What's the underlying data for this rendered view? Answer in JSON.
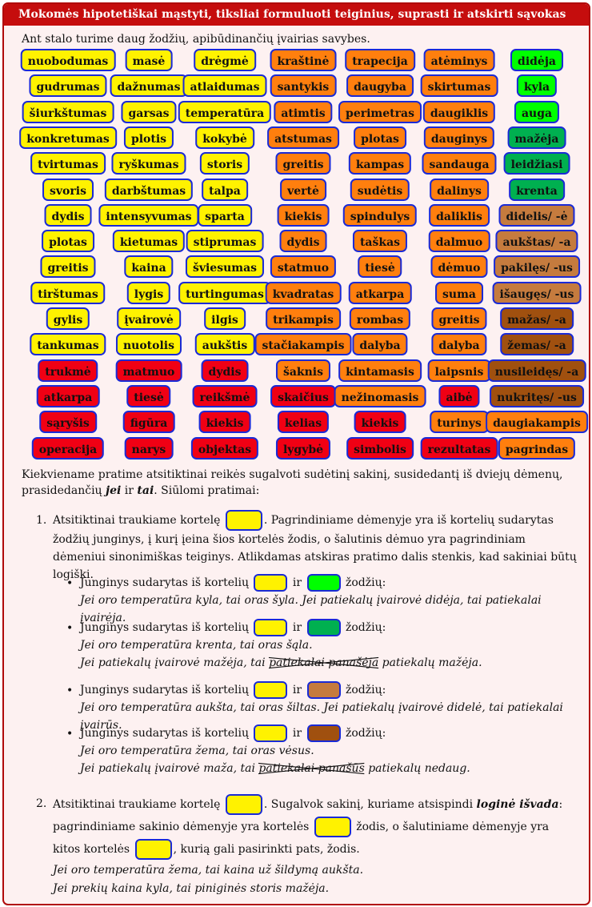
{
  "title": "Mokomės hipotetiškai mąstyti, tiksliai formuluoti teiginius, suprasti ir atskirti sąvokas",
  "intro": "Ant stalo turime daug žodžių, apibūdinančių įvairias savybes.",
  "colors": {
    "yellow": "#fff200",
    "orange": "#ff7f0e",
    "red": "#f00014",
    "green": "#00ff00",
    "darkgreen": "#00b050",
    "tan": "#c57b3e",
    "brown": "#a0500f"
  },
  "columns": [
    {
      "items": [
        {
          "label": "nuobodumas",
          "color": "#fff200"
        },
        {
          "label": "gudrumas",
          "color": "#fff200"
        },
        {
          "label": "šiurkštumas",
          "color": "#fff200"
        },
        {
          "label": "konkretumas",
          "color": "#fff200"
        },
        {
          "label": "tvirtumas",
          "color": "#fff200"
        },
        {
          "label": "svoris",
          "color": "#fff200"
        },
        {
          "label": "dydis",
          "color": "#fff200"
        },
        {
          "label": "plotas",
          "color": "#fff200"
        },
        {
          "label": "greitis",
          "color": "#fff200"
        },
        {
          "label": "tirštumas",
          "color": "#fff200"
        },
        {
          "label": "gylis",
          "color": "#fff200"
        },
        {
          "label": "tankumas",
          "color": "#fff200"
        },
        {
          "label": "trukmė",
          "color": "#f00014"
        },
        {
          "label": "atkarpa",
          "color": "#f00014"
        },
        {
          "label": "sąryšis",
          "color": "#f00014"
        },
        {
          "label": "operacija",
          "color": "#f00014"
        }
      ]
    },
    {
      "items": [
        {
          "label": "masė",
          "color": "#fff200"
        },
        {
          "label": "dažnumas",
          "color": "#fff200"
        },
        {
          "label": "garsas",
          "color": "#fff200"
        },
        {
          "label": "plotis",
          "color": "#fff200"
        },
        {
          "label": "ryškumas",
          "color": "#fff200"
        },
        {
          "label": "darbštumas",
          "color": "#fff200"
        },
        {
          "label": "intensyvumas",
          "color": "#fff200"
        },
        {
          "label": "kietumas",
          "color": "#fff200"
        },
        {
          "label": "kaina",
          "color": "#fff200"
        },
        {
          "label": "lygis",
          "color": "#fff200"
        },
        {
          "label": "įvairovė",
          "color": "#fff200"
        },
        {
          "label": "nuotolis",
          "color": "#fff200"
        },
        {
          "label": "matmuo",
          "color": "#f00014"
        },
        {
          "label": "tiesė",
          "color": "#f00014"
        },
        {
          "label": "figūra",
          "color": "#f00014"
        },
        {
          "label": "narys",
          "color": "#f00014"
        }
      ]
    },
    {
      "items": [
        {
          "label": "drėgmė",
          "color": "#fff200"
        },
        {
          "label": "atlaidumas",
          "color": "#fff200"
        },
        {
          "label": "temperatūra",
          "color": "#fff200"
        },
        {
          "label": "kokybė",
          "color": "#fff200"
        },
        {
          "label": "storis",
          "color": "#fff200"
        },
        {
          "label": "talpa",
          "color": "#fff200"
        },
        {
          "label": "sparta",
          "color": "#fff200"
        },
        {
          "label": "stiprumas",
          "color": "#fff200"
        },
        {
          "label": "šviesumas",
          "color": "#fff200"
        },
        {
          "label": "turtingumas",
          "color": "#fff200"
        },
        {
          "label": "ilgis",
          "color": "#fff200"
        },
        {
          "label": "aukštis",
          "color": "#fff200"
        },
        {
          "label": "dydis",
          "color": "#f00014"
        },
        {
          "label": "reikšmė",
          "color": "#f00014"
        },
        {
          "label": "kiekis",
          "color": "#f00014"
        },
        {
          "label": "objektas",
          "color": "#f00014"
        }
      ]
    },
    {
      "items": [
        {
          "label": "kraštinė",
          "color": "#ff7f0e"
        },
        {
          "label": "santykis",
          "color": "#ff7f0e"
        },
        {
          "label": "atimtis",
          "color": "#ff7f0e"
        },
        {
          "label": "atstumas",
          "color": "#ff7f0e"
        },
        {
          "label": "greitis",
          "color": "#ff7f0e"
        },
        {
          "label": "vertė",
          "color": "#ff7f0e"
        },
        {
          "label": "kiekis",
          "color": "#ff7f0e"
        },
        {
          "label": "dydis",
          "color": "#ff7f0e"
        },
        {
          "label": "statmuo",
          "color": "#ff7f0e"
        },
        {
          "label": "kvadratas",
          "color": "#ff7f0e"
        },
        {
          "label": "trikampis",
          "color": "#ff7f0e"
        },
        {
          "label": "stačiakampis",
          "color": "#ff7f0e"
        },
        {
          "label": "šaknis",
          "color": "#ff7f0e"
        },
        {
          "label": "skaičius",
          "color": "#f00014"
        },
        {
          "label": "kelias",
          "color": "#f00014"
        },
        {
          "label": "lygybė",
          "color": "#f00014"
        }
      ]
    },
    {
      "items": [
        {
          "label": "trapecija",
          "color": "#ff7f0e"
        },
        {
          "label": "daugyba",
          "color": "#ff7f0e"
        },
        {
          "label": "perimetras",
          "color": "#ff7f0e"
        },
        {
          "label": "plotas",
          "color": "#ff7f0e"
        },
        {
          "label": "kampas",
          "color": "#ff7f0e"
        },
        {
          "label": "sudėtis",
          "color": "#ff7f0e"
        },
        {
          "label": "spindulys",
          "color": "#ff7f0e"
        },
        {
          "label": "taškas",
          "color": "#ff7f0e"
        },
        {
          "label": "tiesė",
          "color": "#ff7f0e"
        },
        {
          "label": "atkarpa",
          "color": "#ff7f0e"
        },
        {
          "label": "rombas",
          "color": "#ff7f0e"
        },
        {
          "label": "dalyba",
          "color": "#ff7f0e"
        },
        {
          "label": "kintamasis",
          "color": "#ff7f0e"
        },
        {
          "label": "nežinomasis",
          "color": "#ff7f0e"
        },
        {
          "label": "kiekis",
          "color": "#f00014"
        },
        {
          "label": "simbolis",
          "color": "#f00014"
        }
      ]
    },
    {
      "items": [
        {
          "label": "atėminys",
          "color": "#ff7f0e"
        },
        {
          "label": "skirtumas",
          "color": "#ff7f0e"
        },
        {
          "label": "daugiklis",
          "color": "#ff7f0e"
        },
        {
          "label": "dauginys",
          "color": "#ff7f0e"
        },
        {
          "label": "sandauga",
          "color": "#ff7f0e"
        },
        {
          "label": "dalinys",
          "color": "#ff7f0e"
        },
        {
          "label": "daliklis",
          "color": "#ff7f0e"
        },
        {
          "label": "dalmuo",
          "color": "#ff7f0e"
        },
        {
          "label": "dėmuo",
          "color": "#ff7f0e"
        },
        {
          "label": "suma",
          "color": "#ff7f0e"
        },
        {
          "label": "greitis",
          "color": "#ff7f0e"
        },
        {
          "label": "dalyba",
          "color": "#ff7f0e"
        },
        {
          "label": "laipsnis",
          "color": "#ff7f0e"
        },
        {
          "label": "aibė",
          "color": "#f00014"
        },
        {
          "label": "turinys",
          "color": "#ff7f0e"
        },
        {
          "label": "rezultatas",
          "color": "#f00014"
        }
      ]
    },
    {
      "items": [
        {
          "label": "didėja",
          "color": "#00ff00"
        },
        {
          "label": "kyla",
          "color": "#00ff00"
        },
        {
          "label": "auga",
          "color": "#00ff00"
        },
        {
          "label": "mažėja",
          "color": "#00b050"
        },
        {
          "label": "leidžiasi",
          "color": "#00b050"
        },
        {
          "label": "krenta",
          "color": "#00b050"
        },
        {
          "label": "didelis/ -ė",
          "color": "#c57b3e"
        },
        {
          "label": "aukštas/ -a",
          "color": "#c57b3e"
        },
        {
          "label": "pakilęs/ -us",
          "color": "#c57b3e"
        },
        {
          "label": "išaugęs/ -us",
          "color": "#c57b3e"
        },
        {
          "label": "mažas/ -a",
          "color": "#a0500f"
        },
        {
          "label": "žemas/ -a",
          "color": "#a0500f"
        },
        {
          "label": "nusileidęs/ -a",
          "color": "#a0500f"
        },
        {
          "label": "nukritęs/ -us",
          "color": "#a0500f"
        },
        {
          "label": "daugiakampis",
          "color": "#ff7f0e"
        },
        {
          "label": "pagrindas",
          "color": "#ff7f0e"
        }
      ]
    }
  ],
  "task_intro_1": "Kiekviename pratime atsitiktinai reikės sugalvoti sudėtinį sakinį, susidedantį iš dviejų dėmenų, prasidedančių",
  "kw_jei": "jei",
  "kw_ir": "ir",
  "kw_tai": "tai",
  "task_intro_2": "Siūlomi pratimai:",
  "ex1": {
    "num": "1.",
    "a": "Atsitiktinai traukiame kortelę",
    "b": ". Pagrindiniame dėmenyje yra iš kortelių sudarytas žodžių junginys, į kurį įeina šios kortelės žodis, o šalutinis dėmuo yra pagrindiniam dėmeniui sinonimiškas teiginys. Atlikdamas atskiras pratimo dalis stenkis, kad sakiniai būtų logiški.",
    "bullet_pre": "Junginys sudarytas iš kortelių",
    "bullet_and": "ir",
    "bullet_post": "žodžių:",
    "b1_ex": "Jei oro temperatūra kyla, tai oras šyla. Jei patiekalų įvairovė didėja, tai patiekalai įvairėja.",
    "b2_ex1": "Jei oro temperatūra krenta, tai oras šąla.",
    "b2_ex2a": "Jei patiekalų įvairovė mažėja, tai",
    "b2_ex2s": "patiekalai panašėja",
    "b2_ex2b": "patiekalų mažėja.",
    "b3_ex": "Jei oro temperatūra aukšta, tai oras šiltas. Jei patiekalų įvairovė didelė, tai patiekalai įvairūs.",
    "b4_ex1": "Jei oro temperatūra žema, tai oras vėsus.",
    "b4_ex2a": "Jei patiekalų įvairovė maža, tai",
    "b4_ex2s": "patiekalai panašūs",
    "b4_ex2b": "patiekalų nedaug."
  },
  "ex2": {
    "num": "2.",
    "a": "Atsitiktinai traukiame kortelę",
    "b": ". Sugalvok sakinį, kuriame atsispindi",
    "bold": "loginė išvada",
    "c": ": pagrindiniame sakinio dėmenyje yra kortelės",
    "d": "žodis, o šalutiniame dėmenyje yra kitos kortelės",
    "e": ", kurią gali pasirinkti pats, žodis.",
    "ex1": "Jei oro temperatūra žema, tai kaina už šildymą aukšta.",
    "ex2": "Jei prekių kaina kyla, tai piniginės storis mažėja."
  }
}
